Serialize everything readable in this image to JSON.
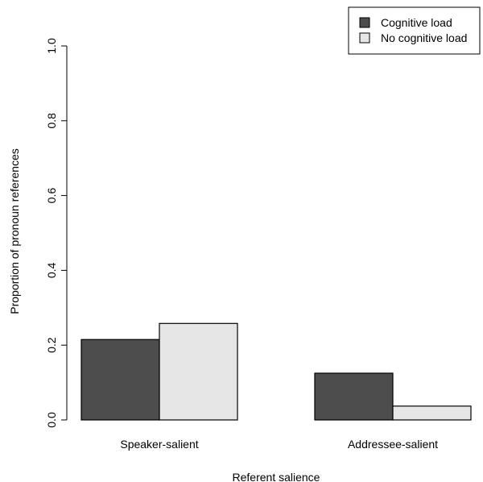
{
  "chart_data": {
    "type": "bar",
    "categories": [
      "Speaker-salient",
      "Addressee-salient"
    ],
    "series": [
      {
        "name": "Cognitive load",
        "values": [
          0.215,
          0.125
        ],
        "color": "#4d4d4d"
      },
      {
        "name": "No cognitive load",
        "values": [
          0.258,
          0.037
        ],
        "color": "#e6e6e6"
      }
    ],
    "title": "",
    "xlabel": "Referent salience",
    "ylabel": "Proportion of pronoun references",
    "ylim": [
      0,
      1.0
    ],
    "yticks": [
      "0.0",
      "0.2",
      "0.4",
      "0.6",
      "0.8",
      "1.0"
    ],
    "grid": false,
    "legend_position": "top-right"
  }
}
